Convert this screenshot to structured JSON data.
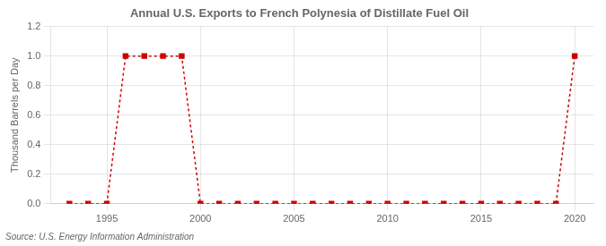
{
  "chart_data": {
    "type": "line",
    "title": "Annual U.S. Exports to French Polynesia of Distillate Fuel Oil",
    "ylabel": "Thousand Barrels per Day",
    "source": "Source: U.S. Energy Information Administration",
    "x": [
      1993,
      1994,
      1995,
      1996,
      1997,
      1998,
      1999,
      2000,
      2001,
      2002,
      2003,
      2004,
      2005,
      2006,
      2007,
      2008,
      2009,
      2010,
      2011,
      2012,
      2013,
      2014,
      2015,
      2016,
      2017,
      2018,
      2019,
      2020
    ],
    "values": [
      0.0,
      0.0,
      0.0,
      1.0,
      1.0,
      1.0,
      1.0,
      0.0,
      0.0,
      0.0,
      0.0,
      0.0,
      0.0,
      0.0,
      0.0,
      0.0,
      0.0,
      0.0,
      0.0,
      0.0,
      0.0,
      0.0,
      0.0,
      0.0,
      0.0,
      0.0,
      0.0,
      1.0
    ],
    "color": "#cc0000",
    "marker": "square",
    "line_style": "dashed",
    "xlim": [
      1992,
      2021
    ],
    "xticks": [
      1995,
      2000,
      2005,
      2010,
      2015,
      2020
    ],
    "ylim": [
      0.0,
      1.2
    ],
    "yticks": [
      {
        "value": 0,
        "label": "0.0"
      },
      0.2,
      0.4,
      0.6,
      0.8,
      {
        "value": 1,
        "label": "1.0"
      },
      1.2
    ],
    "grid": true
  }
}
